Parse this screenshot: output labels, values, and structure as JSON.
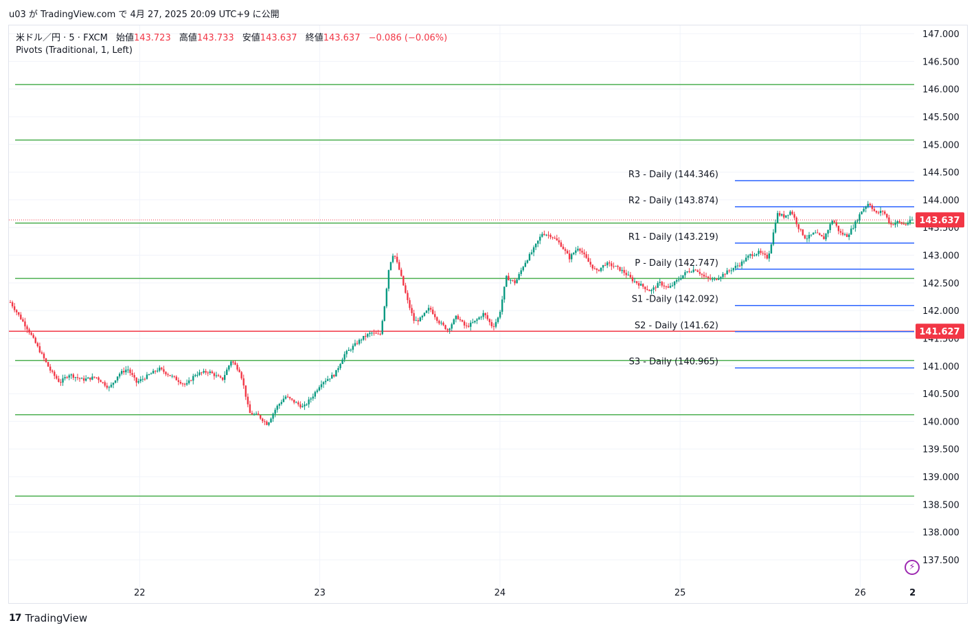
{
  "header": {
    "publish_line": "u03 が TradingView.com で 4月 27, 2025 20:09 UTC+9 に公開"
  },
  "legend": {
    "symbol": "米ドル／円 · 5 · FXCM",
    "open_label": "始値",
    "open": "143.723",
    "high_label": "高値",
    "high": "143.733",
    "low_label": "安値",
    "low": "143.637",
    "close_label": "終値",
    "close": "143.637",
    "change": "−0.086 (−0.06%)",
    "indicator": "Pivots (Traditional, 1, Left)"
  },
  "footer": {
    "brand": "TradingView",
    "logo_glyph": "17"
  },
  "colors": {
    "up": "#089981",
    "down": "#f23645",
    "pivot_green": "#4caf50",
    "pivot_blue": "#2962ff",
    "price_tag": "#f23645",
    "grid": "#f0f3fa"
  },
  "chart_data": {
    "type": "candlestick",
    "ylim": [
      137.0,
      147.4
    ],
    "y_ticks": [
      "137.500",
      "138.000",
      "138.500",
      "139.000",
      "139.500",
      "140.000",
      "140.500",
      "141.000",
      "141.500",
      "142.000",
      "142.500",
      "143.000",
      "143.500",
      "144.000",
      "144.500",
      "145.000",
      "145.500",
      "146.000",
      "146.500",
      "147.000"
    ],
    "x_ticks": [
      {
        "label": "22",
        "x": 0.1444
      },
      {
        "label": "23",
        "x": 0.3434
      },
      {
        "label": "24",
        "x": 0.5424
      },
      {
        "label": "25",
        "x": 0.7414
      },
      {
        "label": "26",
        "x": 0.9404
      },
      {
        "label": "2",
        "x": 0.9982
      }
    ],
    "current_price": {
      "label": "143.637",
      "value": 143.637
    },
    "red_level": {
      "label": "141.627",
      "value": 141.627
    },
    "green_levels": [
      146.08,
      145.08,
      143.58,
      142.58,
      141.1,
      140.12,
      138.65
    ],
    "pivot_levels": [
      {
        "label": "R3 - Daily (144.346)",
        "value": 144.346
      },
      {
        "label": "R2 - Daily (143.874)",
        "value": 143.874
      },
      {
        "label": "R1 - Daily (143.219)",
        "value": 143.219
      },
      {
        "label": "P - Daily (142.747)",
        "value": 142.747
      },
      {
        "label": "S1 -Daily (142.092)",
        "value": 142.092
      },
      {
        "label": "S2 - Daily (141.62)",
        "value": 141.62
      },
      {
        "label": "S3 - Daily (140.965)",
        "value": 140.965
      }
    ],
    "price_path": [
      [
        0.0,
        142.15
      ],
      [
        0.01,
        141.9
      ],
      [
        0.02,
        141.65
      ],
      [
        0.035,
        141.2
      ],
      [
        0.045,
        140.9
      ],
      [
        0.055,
        140.7
      ],
      [
        0.065,
        140.85
      ],
      [
        0.08,
        140.75
      ],
      [
        0.095,
        140.8
      ],
      [
        0.11,
        140.6
      ],
      [
        0.12,
        140.85
      ],
      [
        0.13,
        140.95
      ],
      [
        0.14,
        140.7
      ],
      [
        0.15,
        140.8
      ],
      [
        0.165,
        140.95
      ],
      [
        0.18,
        140.8
      ],
      [
        0.195,
        140.65
      ],
      [
        0.205,
        140.85
      ],
      [
        0.22,
        140.9
      ],
      [
        0.235,
        140.75
      ],
      [
        0.245,
        141.1
      ],
      [
        0.255,
        140.9
      ],
      [
        0.26,
        140.55
      ],
      [
        0.265,
        140.15
      ],
      [
        0.275,
        140.1
      ],
      [
        0.285,
        139.95
      ],
      [
        0.295,
        140.25
      ],
      [
        0.305,
        140.45
      ],
      [
        0.315,
        140.35
      ],
      [
        0.325,
        140.25
      ],
      [
        0.335,
        140.45
      ],
      [
        0.345,
        140.7
      ],
      [
        0.36,
        140.85
      ],
      [
        0.37,
        141.2
      ],
      [
        0.38,
        141.35
      ],
      [
        0.39,
        141.5
      ],
      [
        0.4,
        141.6
      ],
      [
        0.41,
        141.55
      ],
      [
        0.415,
        142.1
      ],
      [
        0.42,
        142.8
      ],
      [
        0.425,
        143.05
      ],
      [
        0.432,
        142.7
      ],
      [
        0.44,
        142.2
      ],
      [
        0.448,
        141.8
      ],
      [
        0.455,
        141.85
      ],
      [
        0.465,
        142.05
      ],
      [
        0.475,
        141.8
      ],
      [
        0.485,
        141.65
      ],
      [
        0.495,
        141.9
      ],
      [
        0.505,
        141.7
      ],
      [
        0.515,
        141.8
      ],
      [
        0.525,
        141.95
      ],
      [
        0.535,
        141.7
      ],
      [
        0.542,
        141.9
      ],
      [
        0.55,
        142.6
      ],
      [
        0.56,
        142.5
      ],
      [
        0.57,
        142.85
      ],
      [
        0.58,
        143.1
      ],
      [
        0.59,
        143.4
      ],
      [
        0.6,
        143.35
      ],
      [
        0.61,
        143.2
      ],
      [
        0.62,
        142.95
      ],
      [
        0.63,
        143.15
      ],
      [
        0.64,
        142.9
      ],
      [
        0.65,
        142.7
      ],
      [
        0.66,
        142.85
      ],
      [
        0.67,
        142.8
      ],
      [
        0.68,
        142.7
      ],
      [
        0.69,
        142.55
      ],
      [
        0.7,
        142.45
      ],
      [
        0.71,
        142.35
      ],
      [
        0.72,
        142.5
      ],
      [
        0.73,
        142.4
      ],
      [
        0.74,
        142.55
      ],
      [
        0.75,
        142.7
      ],
      [
        0.76,
        142.75
      ],
      [
        0.77,
        142.6
      ],
      [
        0.78,
        142.55
      ],
      [
        0.79,
        142.65
      ],
      [
        0.8,
        142.75
      ],
      [
        0.81,
        142.85
      ],
      [
        0.82,
        143.0
      ],
      [
        0.83,
        143.05
      ],
      [
        0.84,
        142.95
      ],
      [
        0.845,
        143.3
      ],
      [
        0.85,
        143.75
      ],
      [
        0.858,
        143.7
      ],
      [
        0.866,
        143.8
      ],
      [
        0.874,
        143.5
      ],
      [
        0.882,
        143.3
      ],
      [
        0.892,
        143.4
      ],
      [
        0.902,
        143.3
      ],
      [
        0.912,
        143.65
      ],
      [
        0.92,
        143.4
      ],
      [
        0.928,
        143.35
      ],
      [
        0.936,
        143.55
      ],
      [
        0.944,
        143.8
      ],
      [
        0.952,
        143.95
      ],
      [
        0.96,
        143.75
      ],
      [
        0.968,
        143.8
      ],
      [
        0.976,
        143.55
      ],
      [
        0.984,
        143.6
      ],
      [
        0.992,
        143.55
      ],
      [
        1.0,
        143.637
      ]
    ]
  }
}
